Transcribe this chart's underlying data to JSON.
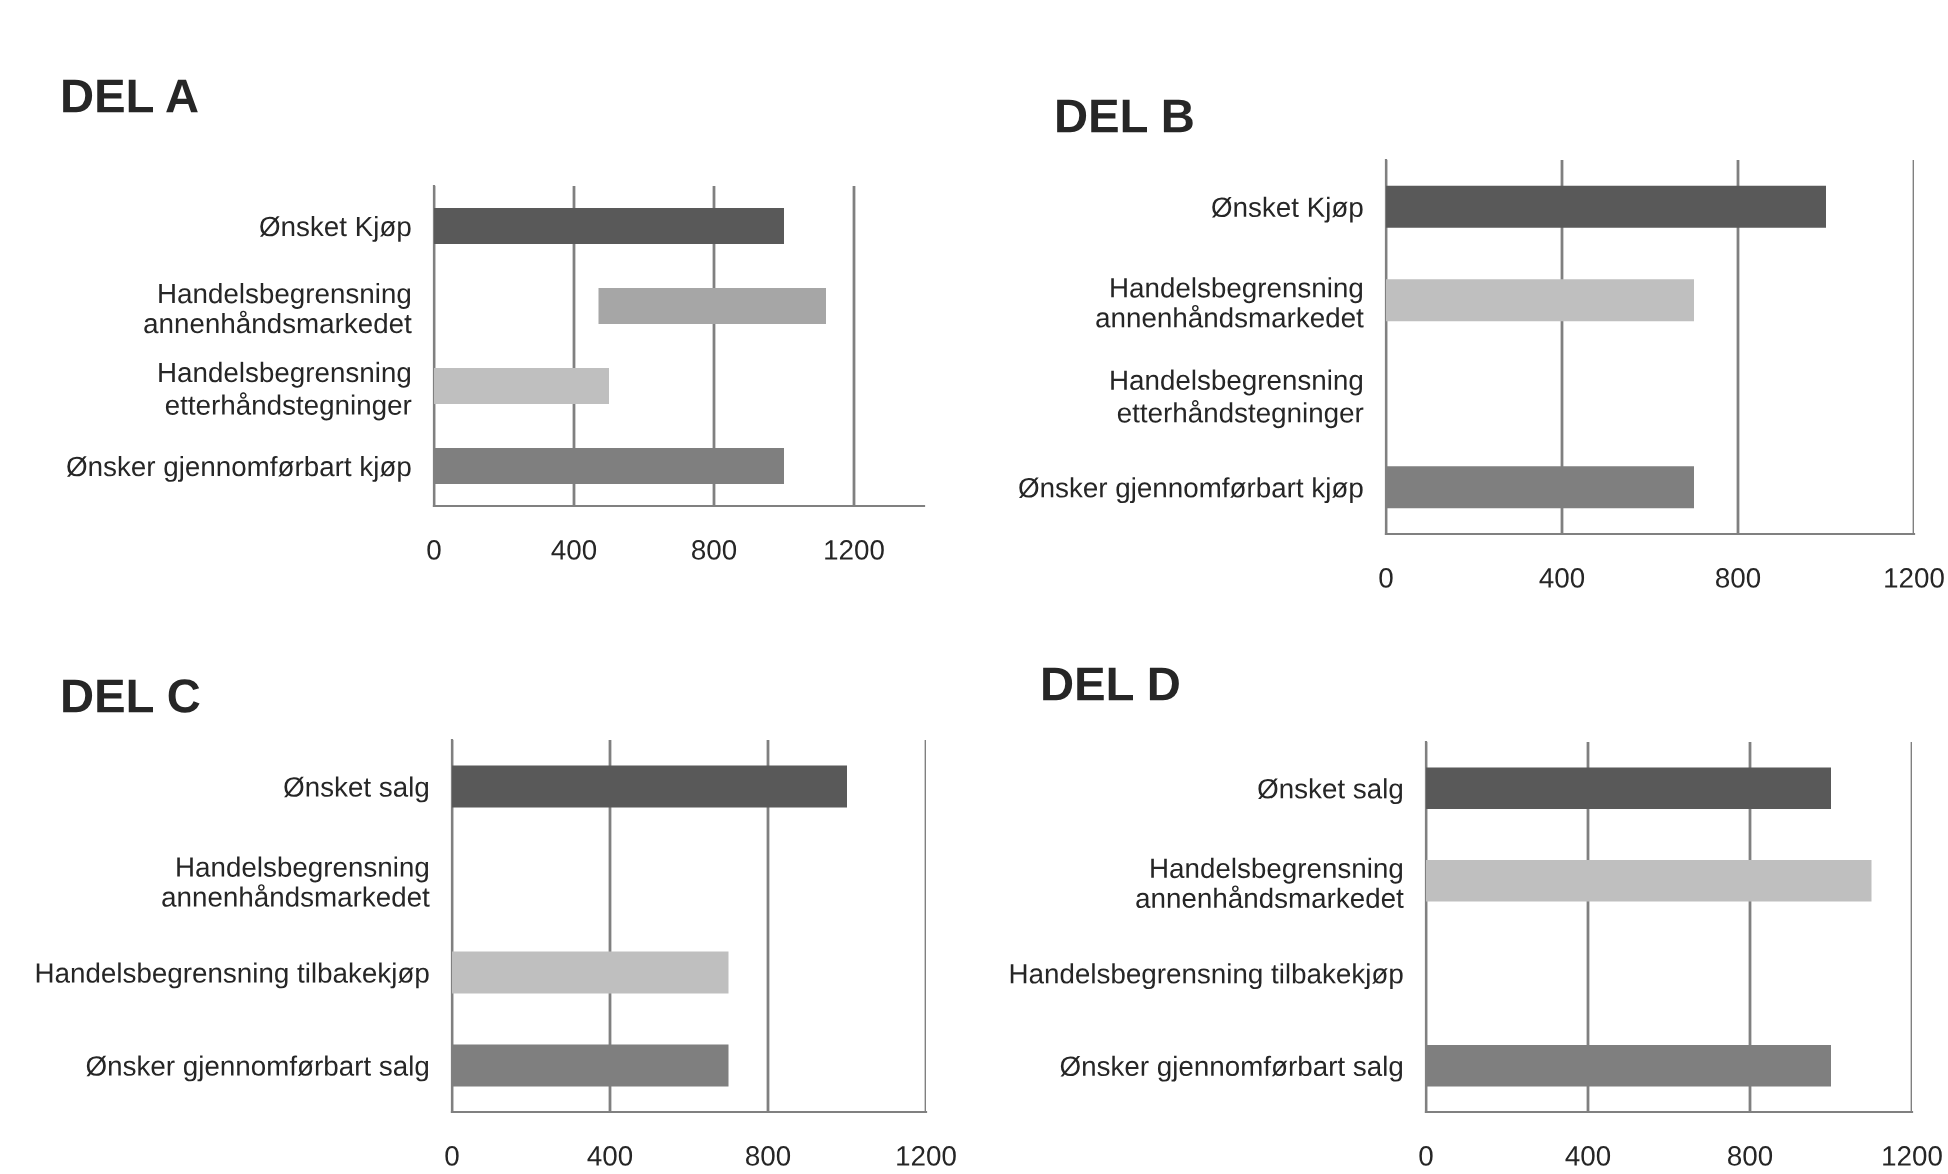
{
  "chart_data": [
    {
      "type": "bar",
      "orientation": "horizontal",
      "title": "DEL A",
      "categories": [
        "Ønsket Kjøp",
        "Handelsbegrensning\nannenhåndsmarkedet",
        "Handelsbegrensning\netterhåndstegninger",
        "Ønsker gjennomførbart kjøp"
      ],
      "values": [
        1000,
        650,
        500,
        1000
      ],
      "base": [
        0,
        470,
        0,
        0
      ],
      "colors": [
        "#595959",
        "#a6a6a6",
        "#bfbfbf",
        "#7f7f7f"
      ],
      "xlim": [
        0,
        1400
      ],
      "xticks": [
        0,
        400,
        800,
        1200
      ],
      "grid": "x"
    },
    {
      "type": "bar",
      "orientation": "horizontal",
      "title": "DEL B",
      "categories": [
        "Ønsket Kjøp",
        "Handelsbegrensning\nannenhåndsmarkedet",
        "Handelsbegrensning\netterhåndstegninger",
        "Ønsker gjennomførbart kjøp"
      ],
      "values": [
        1000,
        700,
        0,
        700
      ],
      "colors": [
        "#595959",
        "#bfbfbf",
        null,
        "#7f7f7f"
      ],
      "xlim": [
        0,
        1200
      ],
      "xticks": [
        0,
        400,
        800,
        1200
      ],
      "grid": "x"
    },
    {
      "type": "bar",
      "orientation": "horizontal",
      "title": "DEL C",
      "categories": [
        "Ønsket salg",
        "Handelsbegrensning\nannenhåndsmarkedet",
        "Handelsbegrensning tilbakekjøp",
        "Ønsker gjennomførbart salg"
      ],
      "values": [
        1000,
        0,
        700,
        700
      ],
      "colors": [
        "#595959",
        null,
        "#bfbfbf",
        "#7f7f7f"
      ],
      "xlim": [
        0,
        1200
      ],
      "xticks": [
        0,
        400,
        800,
        1200
      ],
      "grid": "x"
    },
    {
      "type": "bar",
      "orientation": "horizontal",
      "title": "DEL D",
      "categories": [
        "Ønsket salg",
        "Handelsbegrensning\nannenhåndsmarkedet",
        "Handelsbegrensning tilbakekjøp",
        "Ønsker gjennomførbart salg"
      ],
      "values": [
        1000,
        1100,
        0,
        1000
      ],
      "colors": [
        "#595959",
        "#bfbfbf",
        null,
        "#7f7f7f"
      ],
      "xlim": [
        0,
        1200
      ],
      "xticks": [
        0,
        400,
        800,
        1200
      ],
      "grid": "x"
    }
  ]
}
